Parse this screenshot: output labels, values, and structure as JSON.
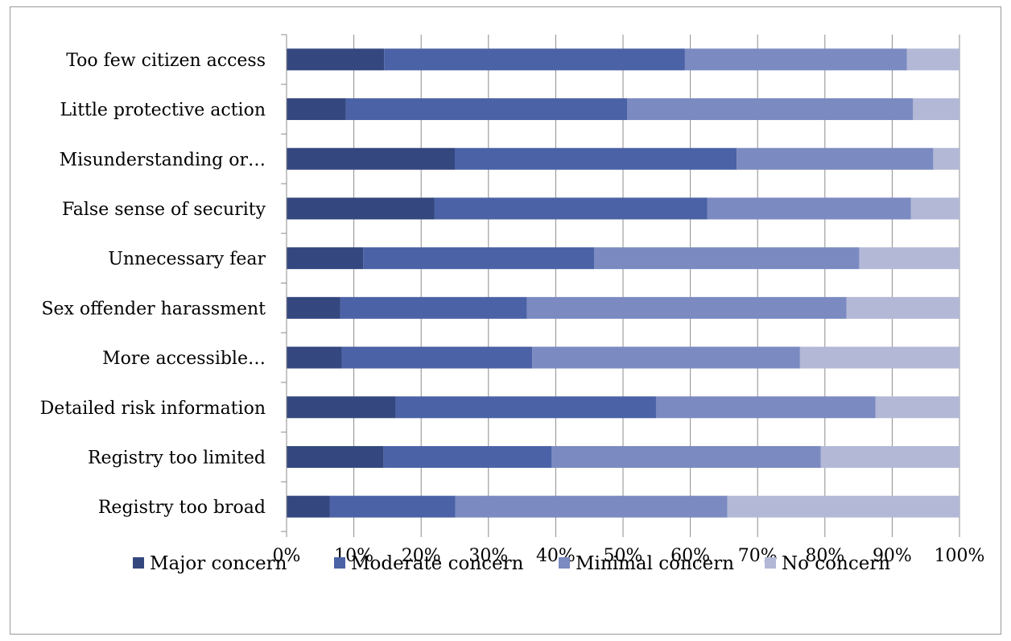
{
  "chart_data": {
    "type": "bar",
    "orientation": "horizontal",
    "stacked": "percent",
    "categories": [
      "Too few citizen access",
      "Little protective action",
      "Misunderstanding or…",
      "False sense of security",
      "Unnecessary fear",
      "Sex offender harassment",
      "More accessible…",
      "Detailed risk information",
      "Registry too limited",
      "Registry too broad"
    ],
    "series": [
      {
        "name": "Major concern",
        "color": "#34487f",
        "values": [
          14.5,
          8.8,
          25.0,
          22.0,
          11.4,
          8.0,
          8.2,
          16.2,
          14.4,
          6.4
        ]
      },
      {
        "name": "Moderate concern",
        "color": "#4b62a6",
        "values": [
          44.7,
          41.8,
          41.9,
          40.5,
          34.3,
          27.7,
          28.3,
          38.7,
          25.0,
          18.7
        ]
      },
      {
        "name": "Minimal concern",
        "color": "#7b8ac0",
        "values": [
          33.0,
          42.5,
          29.2,
          30.3,
          39.4,
          47.5,
          39.8,
          32.6,
          40.0,
          40.4
        ]
      },
      {
        "name": "No concern",
        "color": "#b2b8d6",
        "values": [
          7.8,
          6.9,
          3.9,
          7.2,
          14.9,
          16.8,
          23.7,
          12.5,
          20.6,
          34.5
        ]
      }
    ],
    "x_ticks": [
      "0%",
      "10%",
      "20%",
      "30%",
      "40%",
      "50%",
      "60%",
      "70%",
      "80%",
      "90%",
      "100%"
    ],
    "xlim": [
      0,
      100
    ],
    "grid": true,
    "legend_position": "bottom"
  }
}
